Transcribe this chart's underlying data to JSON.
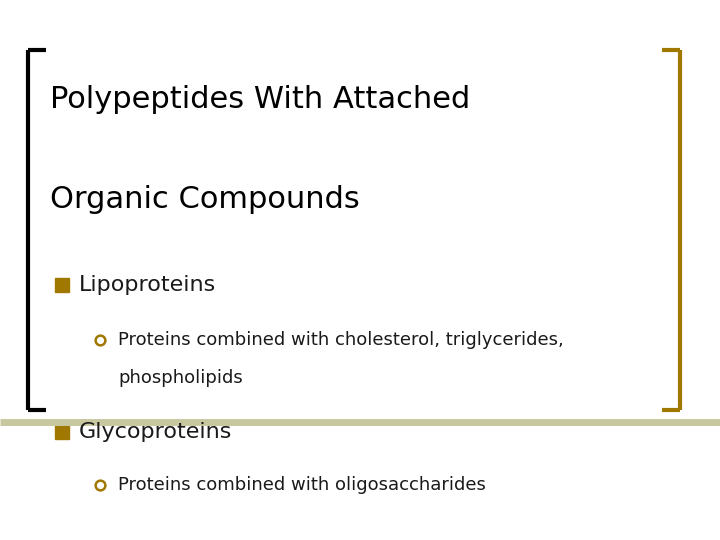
{
  "background_color": "#ffffff",
  "title_line1": "Polypeptides With Attached",
  "title_line2": "Organic Compounds",
  "title_fontsize": 22,
  "title_color": "#000000",
  "bracket_color": "#000000",
  "gold_color": "#A07800",
  "divider_color": "#C8C8A0",
  "bullet1_label": "Lipoproteins",
  "bullet1_sub1": "Proteins combined with cholesterol, triglycerides,",
  "bullet1_sub1b": "phospholipids",
  "bullet2_label": "Glycoproteins",
  "bullet2_sub1": "Proteins combined with oligosaccharides",
  "bullet_fontsize": 16,
  "sub_fontsize": 13,
  "text_color": "#1a1a1a"
}
